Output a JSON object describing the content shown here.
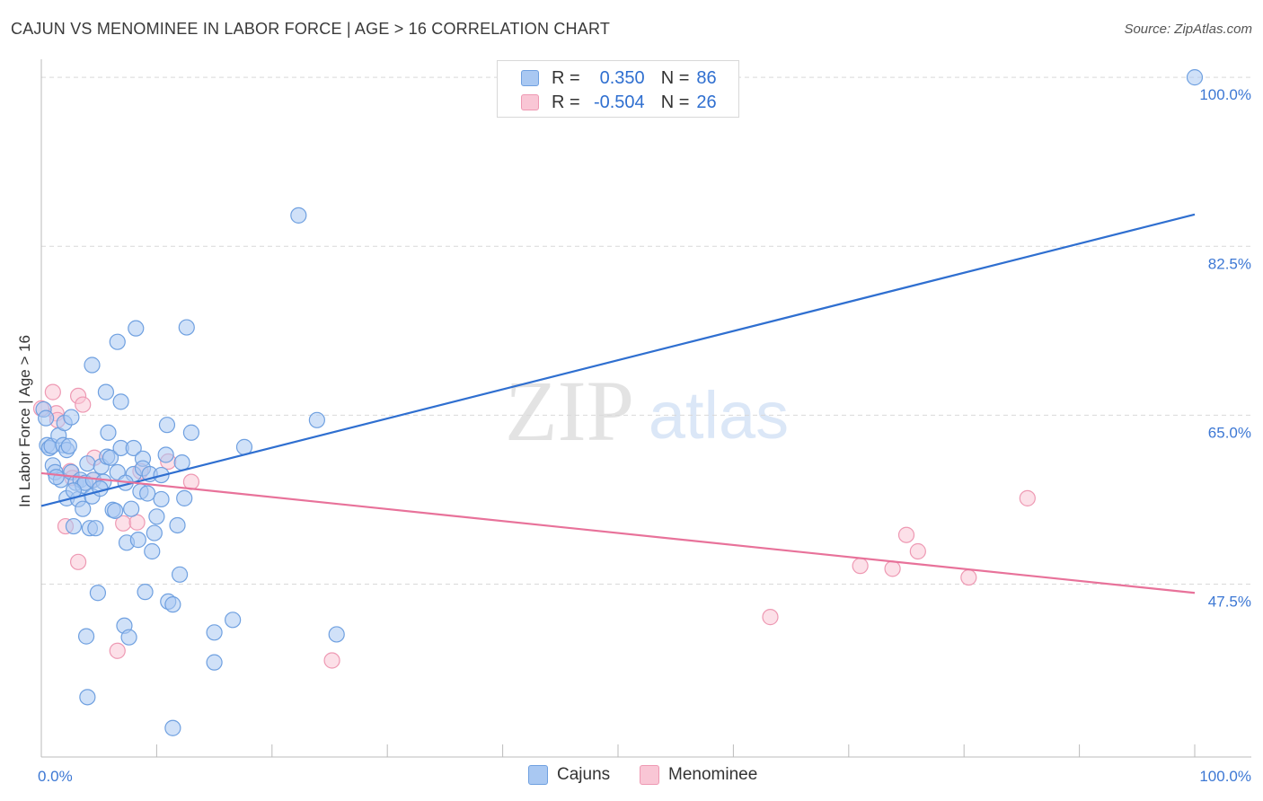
{
  "title": "CAJUN VS MENOMINEE IN LABOR FORCE | AGE > 16 CORRELATION CHART",
  "source": "Source: ZipAtlas.com",
  "watermark": {
    "zip": "ZIP",
    "atlas": "atlas"
  },
  "legend": {
    "r_label": "R =",
    "n_label": "N =",
    "series": [
      {
        "name": "Cajuns",
        "r": "0.350",
        "n": "86",
        "fill": "#a9c8f2",
        "stroke": "#6fa0e0"
      },
      {
        "name": "Menominee",
        "r": "-0.504",
        "n": "26",
        "fill": "#f9c6d5",
        "stroke": "#ee99b3"
      }
    ]
  },
  "colors": {
    "blue_line": "#2f6fd0",
    "pink_line": "#e8729a",
    "axis_text": "#3d78d4",
    "grid": "#d9d9d9"
  },
  "chart_data": {
    "type": "scatter",
    "title": "CAJUN VS MENOMINEE IN LABOR FORCE | AGE > 16 CORRELATION CHART",
    "xlabel": "",
    "ylabel": "In Labor Force | Age > 16",
    "xlim": [
      0,
      100
    ],
    "ylim": [
      29.6,
      101.5
    ],
    "x_tick_labels": [
      "0.0%",
      "100.0%"
    ],
    "y_ticks": [
      47.5,
      65.0,
      82.5,
      100.0
    ],
    "y_tick_labels": [
      "47.5%",
      "65.0%",
      "82.5%",
      "100.0%"
    ],
    "grid": true,
    "series": [
      {
        "name": "Cajuns",
        "trend": {
          "x": [
            0,
            100
          ],
          "y": [
            55.6,
            85.8
          ]
        },
        "points": [
          [
            0.2,
            65.6
          ],
          [
            0.4,
            64.7
          ],
          [
            0.5,
            61.9
          ],
          [
            0.7,
            61.6
          ],
          [
            0.9,
            61.8
          ],
          [
            1.0,
            59.8
          ],
          [
            1.2,
            59.1
          ],
          [
            1.5,
            62.9
          ],
          [
            1.7,
            58.3
          ],
          [
            1.9,
            61.9
          ],
          [
            2.0,
            64.2
          ],
          [
            2.2,
            61.4
          ],
          [
            2.2,
            56.4
          ],
          [
            2.4,
            61.8
          ],
          [
            2.6,
            59.1
          ],
          [
            2.6,
            64.8
          ],
          [
            2.8,
            53.5
          ],
          [
            3.0,
            58.0
          ],
          [
            3.2,
            56.3
          ],
          [
            3.4,
            58.3
          ],
          [
            3.6,
            57.7
          ],
          [
            3.6,
            55.3
          ],
          [
            3.8,
            58.0
          ],
          [
            3.9,
            42.1
          ],
          [
            4.0,
            60.0
          ],
          [
            4.0,
            35.8
          ],
          [
            4.2,
            53.3
          ],
          [
            4.4,
            70.2
          ],
          [
            4.4,
            56.6
          ],
          [
            4.5,
            58.3
          ],
          [
            4.7,
            53.3
          ],
          [
            4.9,
            46.6
          ],
          [
            5.2,
            59.7
          ],
          [
            5.4,
            58.1
          ],
          [
            5.6,
            67.4
          ],
          [
            5.7,
            60.7
          ],
          [
            5.8,
            63.2
          ],
          [
            6.0,
            60.6
          ],
          [
            6.2,
            55.2
          ],
          [
            6.4,
            55.1
          ],
          [
            6.6,
            59.1
          ],
          [
            6.6,
            72.6
          ],
          [
            6.9,
            61.6
          ],
          [
            6.9,
            66.4
          ],
          [
            7.2,
            43.2
          ],
          [
            7.4,
            51.8
          ],
          [
            7.6,
            42.0
          ],
          [
            7.8,
            55.3
          ],
          [
            8.0,
            61.6
          ],
          [
            8.0,
            58.9
          ],
          [
            8.2,
            74.0
          ],
          [
            8.4,
            52.1
          ],
          [
            8.6,
            57.1
          ],
          [
            8.8,
            60.5
          ],
          [
            8.8,
            59.5
          ],
          [
            9.0,
            46.7
          ],
          [
            9.4,
            58.9
          ],
          [
            9.6,
            50.9
          ],
          [
            9.8,
            52.8
          ],
          [
            10.0,
            54.5
          ],
          [
            10.4,
            58.8
          ],
          [
            10.4,
            56.3
          ],
          [
            10.8,
            60.9
          ],
          [
            10.9,
            64.0
          ],
          [
            11.0,
            45.7
          ],
          [
            11.4,
            45.4
          ],
          [
            11.4,
            32.6
          ],
          [
            11.8,
            53.6
          ],
          [
            12.0,
            48.5
          ],
          [
            12.2,
            60.1
          ],
          [
            12.4,
            56.4
          ],
          [
            12.6,
            74.1
          ],
          [
            13.0,
            63.2
          ],
          [
            15.0,
            42.5
          ],
          [
            15.0,
            39.4
          ],
          [
            16.6,
            43.8
          ],
          [
            17.6,
            61.7
          ],
          [
            22.3,
            85.7
          ],
          [
            23.9,
            64.5
          ],
          [
            25.6,
            42.3
          ],
          [
            100.0,
            100.0
          ],
          [
            1.3,
            58.6
          ],
          [
            2.8,
            57.2
          ],
          [
            5.1,
            57.4
          ],
          [
            7.3,
            58.0
          ],
          [
            9.2,
            56.9
          ]
        ]
      },
      {
        "name": "Menominee",
        "trend": {
          "x": [
            0,
            100
          ],
          "y": [
            59.0,
            46.6
          ]
        },
        "points": [
          [
            0.0,
            65.7
          ],
          [
            1.0,
            67.4
          ],
          [
            1.3,
            65.2
          ],
          [
            1.4,
            64.5
          ],
          [
            2.1,
            53.5
          ],
          [
            2.5,
            59.2
          ],
          [
            2.7,
            58.5
          ],
          [
            3.2,
            67.0
          ],
          [
            3.2,
            49.8
          ],
          [
            3.6,
            66.1
          ],
          [
            4.5,
            58.3
          ],
          [
            4.6,
            60.6
          ],
          [
            6.6,
            40.6
          ],
          [
            7.1,
            53.8
          ],
          [
            8.3,
            53.9
          ],
          [
            8.6,
            59.2
          ],
          [
            11.0,
            60.2
          ],
          [
            13.0,
            58.1
          ],
          [
            25.2,
            39.6
          ],
          [
            63.2,
            44.1
          ],
          [
            71.0,
            49.4
          ],
          [
            73.8,
            49.1
          ],
          [
            75.0,
            52.6
          ],
          [
            76.0,
            50.9
          ],
          [
            80.4,
            48.2
          ],
          [
            85.5,
            56.4
          ]
        ]
      }
    ]
  }
}
